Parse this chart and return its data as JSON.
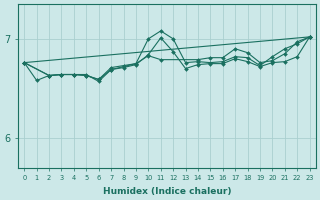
{
  "xlabel": "Humidex (Indice chaleur)",
  "background_color": "#cce8e8",
  "line_color": "#1a7060",
  "grid_color": "#aacfcf",
  "xlim": [
    -0.5,
    23.5
  ],
  "ylim": [
    5.7,
    7.35
  ],
  "yticks": [
    6,
    7
  ],
  "xticks": [
    0,
    1,
    2,
    3,
    4,
    5,
    6,
    7,
    8,
    9,
    10,
    11,
    12,
    13,
    14,
    15,
    16,
    17,
    18,
    19,
    20,
    21,
    22,
    23
  ],
  "lines": [
    {
      "x": [
        0,
        1,
        2,
        3,
        4,
        5,
        6,
        7,
        8,
        9,
        10,
        11,
        12,
        13,
        14,
        15,
        16,
        17,
        18,
        19,
        20,
        21,
        22,
        23
      ],
      "y": [
        6.76,
        6.58,
        6.63,
        6.64,
        6.64,
        6.64,
        6.57,
        6.69,
        6.71,
        6.74,
        6.84,
        7.01,
        6.87,
        6.7,
        6.74,
        6.75,
        6.75,
        6.8,
        6.77,
        6.72,
        6.76,
        6.77,
        6.82,
        7.02
      ]
    },
    {
      "x": [
        0,
        2,
        3,
        4,
        5,
        6,
        7,
        8,
        9,
        10,
        11,
        12,
        13,
        14,
        15,
        16,
        17,
        18,
        19,
        20,
        21,
        22,
        23
      ],
      "y": [
        6.76,
        6.63,
        6.64,
        6.64,
        6.63,
        6.59,
        6.71,
        6.73,
        6.75,
        7.0,
        7.08,
        7.0,
        6.76,
        6.77,
        6.76,
        6.77,
        6.82,
        6.81,
        6.73,
        6.82,
        6.9,
        6.95,
        7.02
      ]
    },
    {
      "x": [
        0,
        2,
        3,
        4,
        5,
        6,
        7,
        9,
        10,
        11,
        14,
        15,
        16,
        17,
        18,
        19,
        20,
        21,
        22,
        23
      ],
      "y": [
        6.76,
        6.63,
        6.64,
        6.64,
        6.63,
        6.59,
        6.69,
        6.75,
        6.83,
        6.79,
        6.79,
        6.81,
        6.81,
        6.9,
        6.86,
        6.76,
        6.78,
        6.85,
        6.97,
        7.02
      ]
    },
    {
      "x": [
        0,
        23
      ],
      "y": [
        6.76,
        7.02
      ]
    }
  ]
}
